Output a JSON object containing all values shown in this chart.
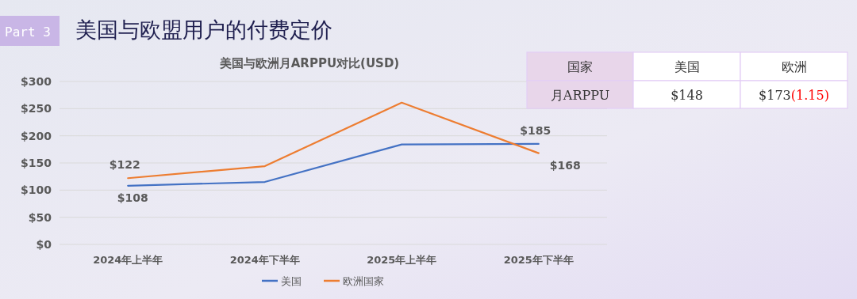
{
  "chart_data": {
    "type": "line",
    "title": "美国与欧盟用户的付费定价",
    "subtitle": "美国与欧洲月ARPPU对比(USD)",
    "categories": [
      "2024年上半年",
      "2024年下半年",
      "2025年上半年",
      "2025年下半年"
    ],
    "series": [
      {
        "name": "美国",
        "color": "#4472c4",
        "values": [
          108,
          115,
          184,
          185
        ],
        "value_labels": [
          "$108",
          null,
          null,
          "$185"
        ]
      },
      {
        "name": "欧洲国家",
        "color": "#ed7d31",
        "values": [
          122,
          144,
          261,
          168
        ],
        "value_labels": [
          "$122",
          null,
          null,
          "$168"
        ]
      }
    ],
    "ylim": [
      0,
      300
    ],
    "yticks": [
      {
        "value": 0,
        "label": "$0"
      },
      {
        "value": 50,
        "label": "$50"
      },
      {
        "value": 100,
        "label": "$100"
      },
      {
        "value": 150,
        "label": "$150"
      },
      {
        "value": 200,
        "label": "$200"
      },
      {
        "value": 250,
        "label": "$250"
      },
      {
        "value": 300,
        "label": "$300"
      }
    ],
    "grid": "y",
    "legend": "bottom",
    "marker": "none",
    "line_style": "solid",
    "annotations": [
      "Part 3",
      "国家",
      "美国",
      "欧洲",
      "月ARPPU",
      "$148",
      "$173",
      "(1.15)"
    ]
  }
}
